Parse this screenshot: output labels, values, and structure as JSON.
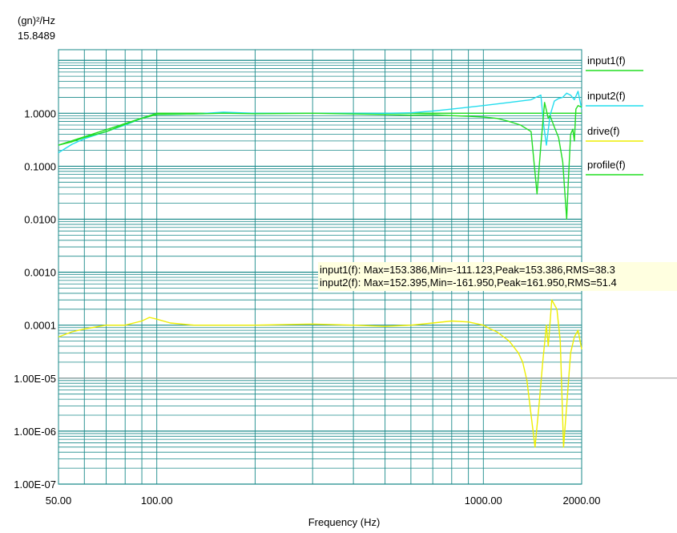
{
  "chart_data": {
    "type": "line",
    "ylabel": "(gn)²/Hz",
    "xlabel": "Frequency (Hz)",
    "x_scale": "log",
    "y_scale": "log",
    "xlim": [
      50,
      2000
    ],
    "ylim": [
      1e-07,
      15.8489
    ],
    "y_top_label": "15.8489",
    "y_ticks": [
      {
        "value": 1,
        "label": "1.0000"
      },
      {
        "value": 0.1,
        "label": "0.1000"
      },
      {
        "value": 0.01,
        "label": "0.0100"
      },
      {
        "value": 0.001,
        "label": "0.0010"
      },
      {
        "value": 0.0001,
        "label": "0.0001"
      },
      {
        "value": 1e-05,
        "label": "1.00E-05"
      },
      {
        "value": 1e-06,
        "label": "1.00E-06"
      },
      {
        "value": 1e-07,
        "label": "1.00E-07"
      }
    ],
    "x_ticks": [
      {
        "value": 50,
        "label": "50.00"
      },
      {
        "value": 100,
        "label": "100.00"
      },
      {
        "value": 1000,
        "label": "1000.00"
      },
      {
        "value": 2000,
        "label": "2000.00"
      }
    ],
    "grid": true,
    "legend_position": "right",
    "series": [
      {
        "name": "input1(f)",
        "color": "#22dd22",
        "x": [
          50,
          55,
          60,
          70,
          80,
          90,
          100,
          130,
          160,
          200,
          300,
          400,
          500,
          600,
          700,
          800,
          900,
          1000,
          1100,
          1200,
          1300,
          1400,
          1460,
          1500,
          1540,
          1580,
          1600,
          1650,
          1700,
          1750,
          1800,
          1820,
          1850,
          1880,
          1900,
          1920,
          1950,
          2000
        ],
        "y": [
          0.25,
          0.29,
          0.35,
          0.45,
          0.62,
          0.8,
          0.95,
          0.97,
          1.0,
          0.98,
          1.0,
          0.97,
          0.95,
          0.92,
          0.94,
          0.9,
          0.88,
          0.85,
          0.8,
          0.7,
          0.6,
          0.45,
          0.03,
          0.25,
          1.6,
          0.8,
          0.9,
          0.55,
          0.35,
          0.12,
          0.01,
          0.05,
          0.4,
          0.5,
          0.3,
          1.2,
          1.4,
          1.3
        ]
      },
      {
        "name": "input2(f)",
        "color": "#22ddee",
        "x": [
          50,
          55,
          60,
          70,
          80,
          90,
          100,
          130,
          160,
          200,
          300,
          400,
          500,
          600,
          700,
          800,
          900,
          1000,
          1100,
          1200,
          1300,
          1400,
          1450,
          1500,
          1530,
          1560,
          1600,
          1650,
          1700,
          1750,
          1800,
          1850,
          1900,
          1950,
          2000
        ],
        "y": [
          0.18,
          0.26,
          0.33,
          0.45,
          0.6,
          0.8,
          0.95,
          0.97,
          1.05,
          1.0,
          1.0,
          1.0,
          1.0,
          1.02,
          1.1,
          1.2,
          1.3,
          1.4,
          1.5,
          1.6,
          1.7,
          1.8,
          2.0,
          2.2,
          0.6,
          0.25,
          0.9,
          1.7,
          1.9,
          2.0,
          2.4,
          2.2,
          1.8,
          2.6,
          1.2
        ]
      },
      {
        "name": "drive(f)",
        "color": "#eeee00",
        "x": [
          50,
          55,
          60,
          70,
          80,
          90,
          95,
          100,
          110,
          130,
          160,
          200,
          300,
          400,
          500,
          600,
          700,
          800,
          900,
          1000,
          1050,
          1100,
          1200,
          1280,
          1320,
          1360,
          1400,
          1440,
          1480,
          1520,
          1560,
          1580,
          1620,
          1680,
          1720,
          1760,
          1800,
          1850,
          1900,
          1950,
          2000
        ],
        "y": [
          6e-05,
          7.5e-05,
          8.5e-05,
          0.0001,
          0.0001,
          0.00012,
          0.00014,
          0.00013,
          0.00011,
          0.0001,
          0.0001,
          0.0001,
          0.000105,
          0.0001,
          9.5e-05,
          0.0001,
          0.00011,
          0.00012,
          0.000115,
          0.0001,
          8.5e-05,
          7.5e-05,
          5e-05,
          3e-05,
          2e-05,
          9e-06,
          2e-06,
          5e-07,
          3e-06,
          2e-05,
          0.0001,
          4e-05,
          0.0003,
          0.0002,
          5e-05,
          5e-07,
          3e-06,
          3e-05,
          6e-05,
          8e-05,
          3.5e-05
        ]
      },
      {
        "name": "profile(f)",
        "color": "#22dd22",
        "x": [
          50,
          100,
          1000,
          2000
        ],
        "y": [
          0.25,
          1.0,
          1.0,
          1.0
        ]
      }
    ],
    "annotations": [
      "input1(f): Max=153.386,Min=-111.123,Peak=153.386,RMS=38.3",
      "input2(f): Max=152.395,Min=-161.950,Peak=161.950,RMS=51.4"
    ]
  }
}
